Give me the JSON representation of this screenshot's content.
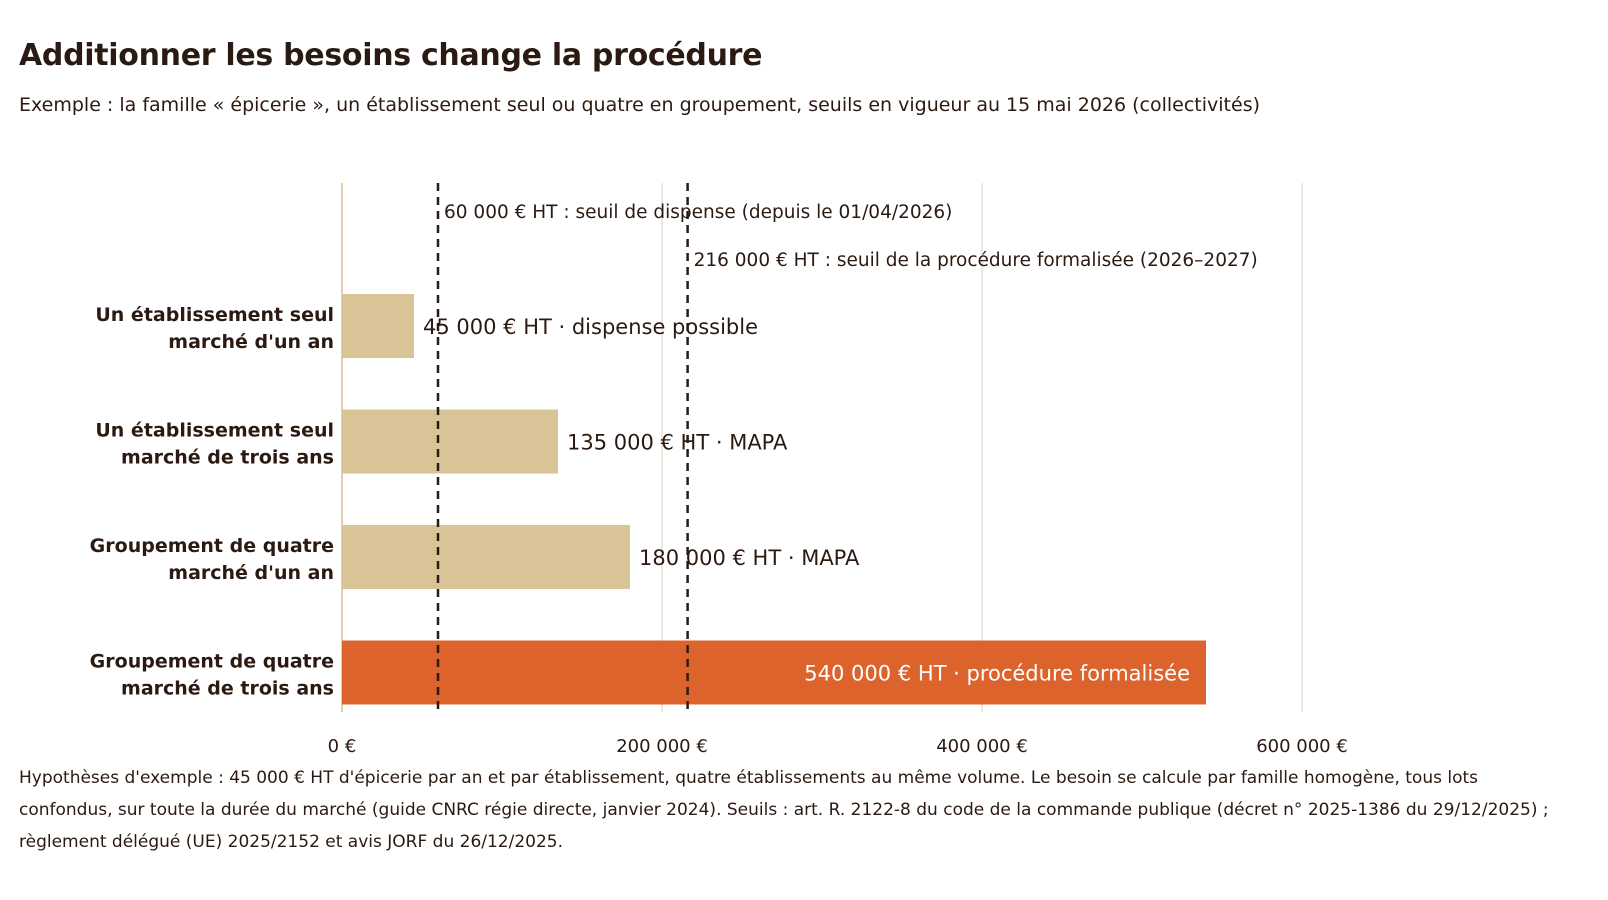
{
  "title": "Additionner les besoins change la procédure",
  "subtitle": "Exemple : la famille « épicerie », un établissement seul ou quatre en groupement, seuils en vigueur au 15 mai 2026 (collectivités)",
  "footnote": "Hypothèses d'exemple : 45 000 € HT d'épicerie par an et par établissement, quatre établissements au même volume. Le besoin se calcule par famille homogène, tous lots confondus, sur toute la durée du marché (guide CNRC régie directe, janvier 2024). Seuils : art. R. 2122-8 du code de la commande publique (décret n° 2025-1386 du 29/12/2025) ; règlement délégué (UE) 2025/2152 et avis JORF du 26/12/2025.",
  "colors": {
    "bar_default": "#d9c497",
    "bar_highlight": "#dc642c",
    "grid": "#ece3d3",
    "axis": "#e0cfae",
    "text": "#2b1a12"
  },
  "chart_data": {
    "type": "bar",
    "orientation": "horizontal",
    "xlim": [
      0,
      600000
    ],
    "x_ticks": [
      {
        "value": 0,
        "label": "0 €"
      },
      {
        "value": 200000,
        "label": "200 000 €"
      },
      {
        "value": 400000,
        "label": "400 000 €"
      },
      {
        "value": 600000,
        "label": "600 000 €"
      }
    ],
    "grid": true,
    "bars": [
      {
        "category": [
          "Un établissement seul",
          "marché d'un an"
        ],
        "value": 45000,
        "label": "45 000 € HT  ·  dispense possible",
        "highlight": false
      },
      {
        "category": [
          "Un établissement seul",
          "marché de trois ans"
        ],
        "value": 135000,
        "label": "135 000 € HT  ·  MAPA",
        "highlight": false
      },
      {
        "category": [
          "Groupement de quatre",
          "marché d'un an"
        ],
        "value": 180000,
        "label": "180 000 € HT  ·  MAPA",
        "highlight": false
      },
      {
        "category": [
          "Groupement de quatre",
          "marché de trois ans"
        ],
        "value": 540000,
        "label": "540 000 € HT  ·  procédure formalisée",
        "highlight": true
      }
    ],
    "thresholds": [
      {
        "value": 60000,
        "label": "60 000 € HT : seuil de dispense (depuis le 01/04/2026)"
      },
      {
        "value": 216000,
        "label": "216 000 € HT : seuil de la procédure formalisée (2026–2027)"
      }
    ]
  }
}
